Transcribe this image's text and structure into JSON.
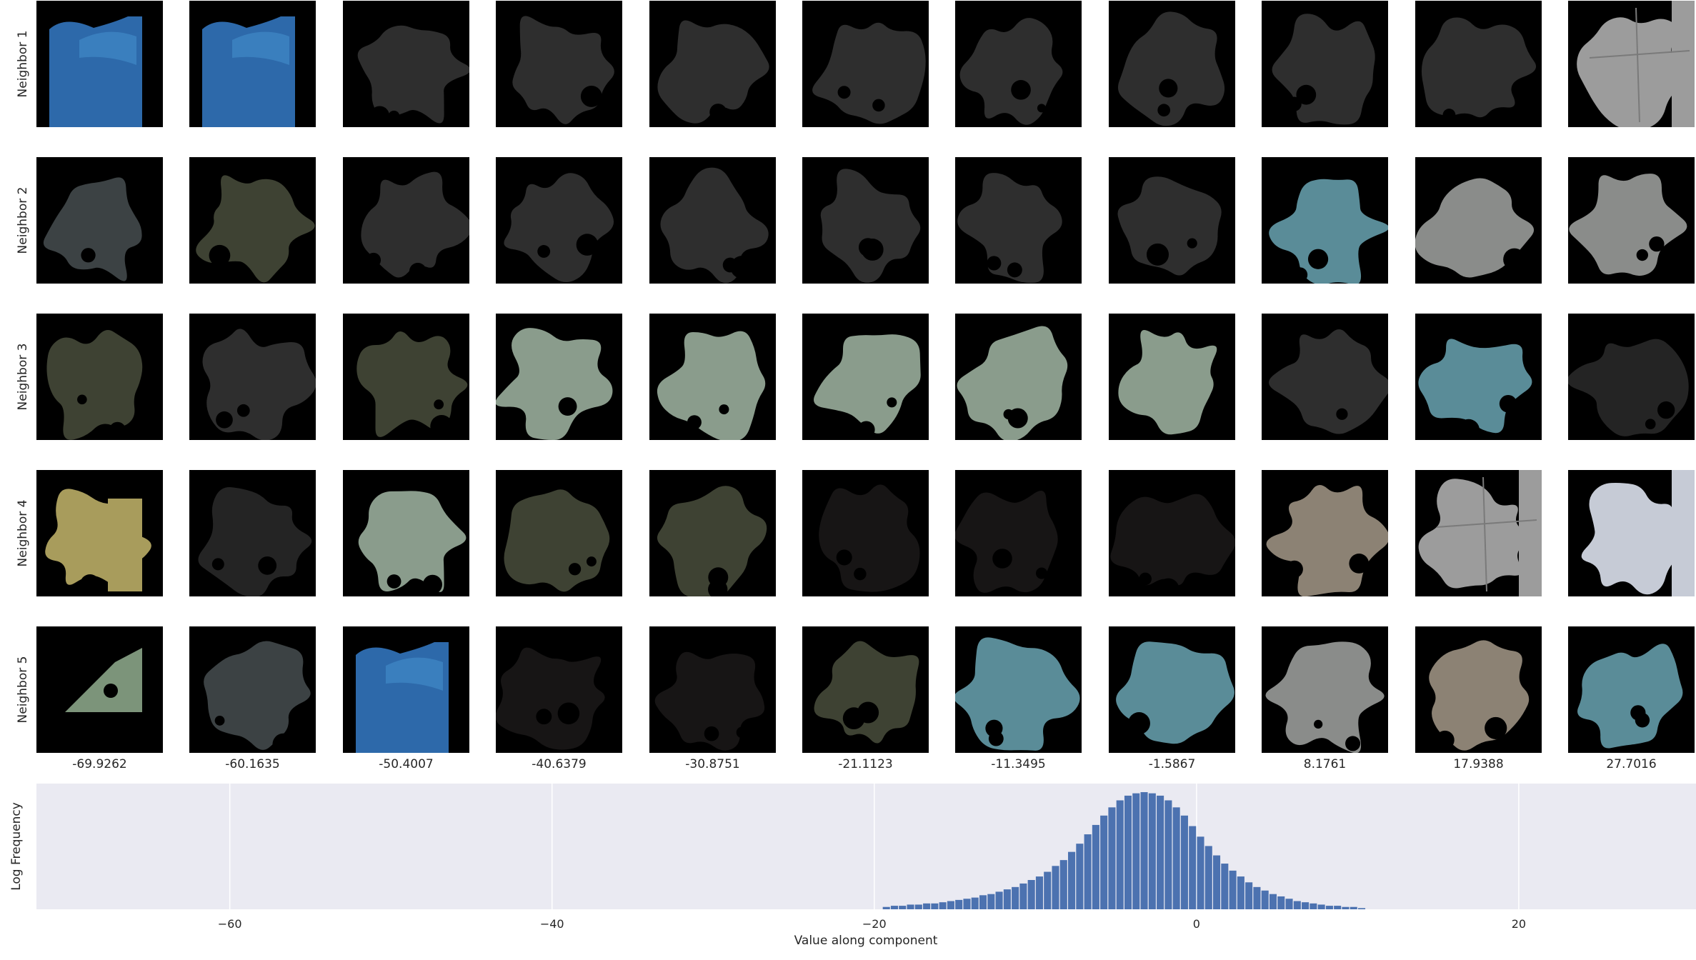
{
  "row_labels": [
    "Neighbor 1",
    "Neighbor 2",
    "Neighbor 3",
    "Neighbor 4",
    "Neighbor 5"
  ],
  "column_values": [
    "-69.9262",
    "-60.1635",
    "-50.4007",
    "-40.6379",
    "-30.8751",
    "-21.1123",
    "-11.3495",
    "-1.5867",
    "8.1761",
    "17.9388",
    "27.7016"
  ],
  "tiles": [
    [
      "blue-object",
      "blue-object",
      "dark-grey",
      "dark-grey",
      "dark-grey",
      "dark-grey",
      "dark-grey",
      "dark-grey",
      "dark-grey",
      "dark-grey",
      "light-grey-tiles"
    ],
    [
      "slate-grey",
      "olive-dark",
      "dark-grey",
      "dark-grey",
      "dark-grey",
      "dark-grey",
      "dark-grey",
      "dark-grey",
      "teal",
      "grey",
      "grey"
    ],
    [
      "olive-dark",
      "dark-grey",
      "olive-dark",
      "sage-green",
      "sage-green",
      "sage-green",
      "sage-green",
      "sage-green",
      "dark-grey",
      "teal",
      "charcoal"
    ],
    [
      "khaki-yellow",
      "charcoal",
      "sage-green",
      "olive-dark",
      "olive-dark",
      "near-black",
      "near-black",
      "near-black",
      "taupe",
      "light-grey-tiles",
      "white-silver"
    ],
    [
      "sage-corner",
      "slate-grey",
      "blue-object",
      "near-black",
      "near-black",
      "olive-dark",
      "teal",
      "teal",
      "grey",
      "taupe",
      "teal"
    ]
  ],
  "tile_colors": {
    "blue-object": "#2d69aa",
    "dark-grey": "#2e2e2e",
    "light-grey-tiles": "#9c9c9c",
    "slate-grey": "#3c4244",
    "olive-dark": "#3e4233",
    "teal": "#5a8c98",
    "grey": "#8a8c8a",
    "sage-green": "#8a9c8c",
    "charcoal": "#242424",
    "khaki-yellow": "#a89c5c",
    "near-black": "#171515",
    "taupe": "#8c8274",
    "white-silver": "#c6cbd6",
    "sage-corner": "#7c947a"
  },
  "chart_data": {
    "type": "bar",
    "xlabel": "Value along component",
    "ylabel": "Log Frequency",
    "xlim": [
      -72,
      31
    ],
    "x_ticks": [
      "−60",
      "−40",
      "−20",
      "0",
      "20"
    ],
    "x_tick_values": [
      -60,
      -40,
      -20,
      0,
      20
    ],
    "grid": true,
    "background": "#eaeaf2",
    "bar_color": "#4c72b0",
    "bin_width": 0.5,
    "bins": [
      -19.25,
      -18.75,
      -18.25,
      -17.75,
      -17.25,
      -16.75,
      -16.25,
      -15.75,
      -15.25,
      -14.75,
      -14.25,
      -13.75,
      -13.25,
      -12.75,
      -12.25,
      -11.75,
      -11.25,
      -10.75,
      -10.25,
      -9.75,
      -9.25,
      -8.75,
      -8.25,
      -7.75,
      -7.25,
      -6.75,
      -6.25,
      -5.75,
      -5.25,
      -4.75,
      -4.25,
      -3.75,
      -3.25,
      -2.75,
      -2.25,
      -1.75,
      -1.25,
      -0.75,
      -0.25,
      0.25,
      0.75,
      1.25,
      1.75,
      2.25,
      2.75,
      3.25,
      3.75,
      4.25,
      4.75,
      5.25,
      5.75,
      6.25,
      6.75,
      7.25,
      7.75,
      8.25,
      8.75,
      9.25,
      9.75,
      10.25
    ],
    "values": [
      0.02,
      0.03,
      0.03,
      0.04,
      0.04,
      0.05,
      0.05,
      0.06,
      0.07,
      0.08,
      0.09,
      0.1,
      0.12,
      0.13,
      0.15,
      0.17,
      0.19,
      0.22,
      0.25,
      0.28,
      0.32,
      0.37,
      0.42,
      0.49,
      0.56,
      0.64,
      0.72,
      0.8,
      0.87,
      0.93,
      0.97,
      0.99,
      1.0,
      0.99,
      0.97,
      0.93,
      0.87,
      0.8,
      0.71,
      0.62,
      0.54,
      0.46,
      0.39,
      0.33,
      0.28,
      0.23,
      0.19,
      0.16,
      0.13,
      0.11,
      0.09,
      0.07,
      0.06,
      0.05,
      0.04,
      0.03,
      0.03,
      0.02,
      0.02,
      0.01
    ]
  }
}
